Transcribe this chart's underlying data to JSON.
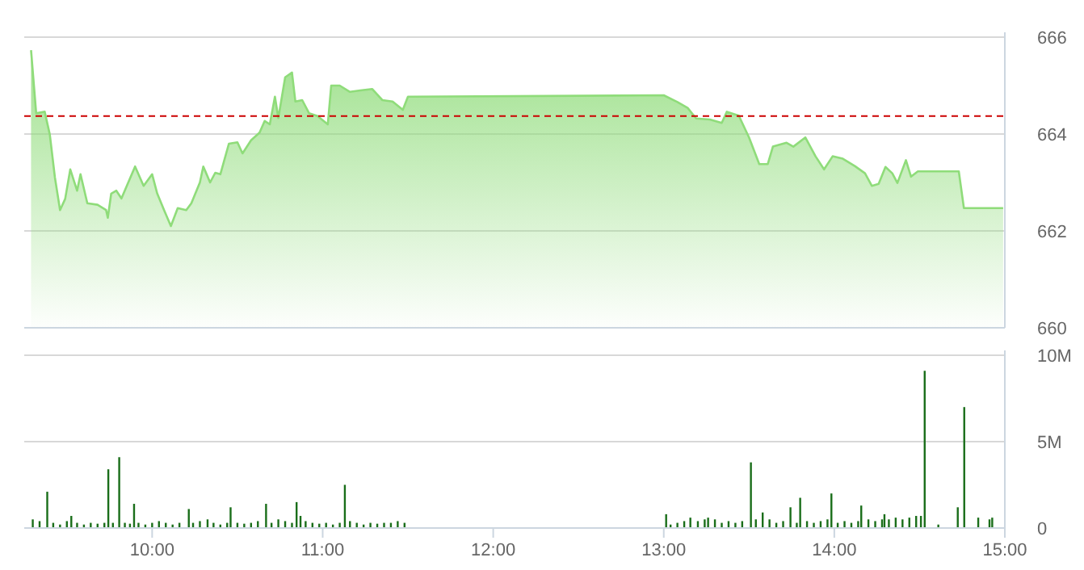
{
  "chart_data": [
    {
      "type": "area",
      "color": "#8fdc7a",
      "xlim": [
        9.25,
        15
      ],
      "ylim": [
        660,
        666
      ],
      "yticks": [
        660,
        662,
        664,
        666
      ],
      "tick_labels": "y",
      "grid": "y",
      "x": [
        9.29,
        9.32,
        9.37,
        9.4,
        9.43,
        9.46,
        9.49,
        9.52,
        9.56,
        9.58,
        9.62,
        9.68,
        9.73,
        9.74,
        9.76,
        9.79,
        9.82,
        9.9,
        9.95,
        10.0,
        10.03,
        10.07,
        10.11,
        10.15,
        10.2,
        10.23,
        10.28,
        10.3,
        10.34,
        10.37,
        10.4,
        10.45,
        10.5,
        10.53,
        10.58,
        10.63,
        10.66,
        10.69,
        10.72,
        10.74,
        10.78,
        10.82,
        10.84,
        10.88,
        10.92,
        10.97,
        11.03,
        11.05,
        11.1,
        11.16,
        11.22,
        11.29,
        11.35,
        11.41,
        11.47,
        11.5,
        13.0,
        13.08,
        13.14,
        13.19,
        13.27,
        13.34,
        13.37,
        13.44,
        13.5,
        13.56,
        13.61,
        13.64,
        13.72,
        13.76,
        13.83,
        13.89,
        13.94,
        13.99,
        14.05,
        14.12,
        14.18,
        14.22,
        14.26,
        14.3,
        14.34,
        14.37,
        14.42,
        14.45,
        14.49,
        14.73,
        14.76,
        14.99
      ],
      "values": [
        665.73,
        664.43,
        664.46,
        663.99,
        663.1,
        662.43,
        662.66,
        663.27,
        662.83,
        663.17,
        662.57,
        662.54,
        662.43,
        662.27,
        662.77,
        662.83,
        662.67,
        663.33,
        662.93,
        663.17,
        662.77,
        662.43,
        662.1,
        662.47,
        662.43,
        662.57,
        663.0,
        663.33,
        663.0,
        663.2,
        663.17,
        663.8,
        663.83,
        663.6,
        663.87,
        664.03,
        664.27,
        664.2,
        664.77,
        664.33,
        665.17,
        665.27,
        664.67,
        664.7,
        664.43,
        664.37,
        664.2,
        665.0,
        665.0,
        664.87,
        664.9,
        664.93,
        664.7,
        664.67,
        664.5,
        664.77,
        664.8,
        664.66,
        664.54,
        664.32,
        664.3,
        664.23,
        664.46,
        664.38,
        663.93,
        663.38,
        663.38,
        663.74,
        663.82,
        663.74,
        663.93,
        663.54,
        663.27,
        663.54,
        663.49,
        663.34,
        663.19,
        662.93,
        662.97,
        663.32,
        663.19,
        662.99,
        663.46,
        663.12,
        663.23,
        663.23,
        662.47,
        662.47
      ],
      "ref_lines": [
        {
          "axis": "y",
          "value": 664.37,
          "color": "#cc0000",
          "line_style": "dashed"
        }
      ]
    },
    {
      "type": "bar",
      "color": "#1a6e1a",
      "xlim": [
        9.25,
        15
      ],
      "ylim": [
        0,
        10000000
      ],
      "yticks": [
        {
          "value": 0,
          "label": "0"
        },
        {
          "value": 5000000,
          "label": "5M"
        },
        {
          "value": 10000000,
          "label": "10M"
        }
      ],
      "xticks": [
        {
          "value": 10,
          "label": "10:00"
        },
        {
          "value": 11,
          "label": "11:00"
        },
        {
          "value": 12,
          "label": "12:00"
        },
        {
          "value": 13,
          "label": "13:00"
        },
        {
          "value": 14,
          "label": "14:00"
        },
        {
          "value": 15,
          "label": "15:00"
        }
      ],
      "grid": "y",
      "x": [
        9.3,
        9.34,
        9.385,
        9.42,
        9.46,
        9.5,
        9.526,
        9.56,
        9.6,
        9.64,
        9.68,
        9.72,
        9.743,
        9.77,
        9.807,
        9.84,
        9.87,
        9.894,
        9.92,
        9.96,
        10.0,
        10.04,
        10.08,
        10.12,
        10.16,
        10.215,
        10.24,
        10.28,
        10.325,
        10.36,
        10.4,
        10.44,
        10.46,
        10.5,
        10.54,
        10.58,
        10.62,
        10.668,
        10.7,
        10.74,
        10.78,
        10.82,
        10.847,
        10.87,
        10.9,
        10.94,
        10.98,
        11.02,
        11.06,
        11.1,
        11.13,
        11.16,
        11.2,
        11.24,
        11.28,
        11.32,
        11.36,
        11.4,
        11.44,
        11.48,
        13.014,
        13.04,
        13.08,
        13.12,
        13.156,
        13.2,
        13.24,
        13.26,
        13.3,
        13.34,
        13.38,
        13.42,
        13.46,
        13.511,
        13.54,
        13.58,
        13.62,
        13.66,
        13.7,
        13.743,
        13.78,
        13.8,
        13.84,
        13.88,
        13.92,
        13.96,
        13.983,
        14.02,
        14.06,
        14.1,
        14.14,
        14.158,
        14.2,
        14.24,
        14.28,
        14.294,
        14.32,
        14.36,
        14.4,
        14.44,
        14.48,
        14.508,
        14.53,
        14.61,
        14.724,
        14.762,
        14.844,
        14.91,
        14.926
      ],
      "values": [
        500000,
        400000,
        2100000,
        300000,
        200000,
        400000,
        700000,
        300000,
        200000,
        300000,
        250000,
        300000,
        3400000,
        300000,
        4100000,
        300000,
        250000,
        1400000,
        300000,
        200000,
        300000,
        400000,
        300000,
        200000,
        300000,
        1100000,
        300000,
        400000,
        500000,
        300000,
        200000,
        300000,
        1200000,
        300000,
        250000,
        300000,
        400000,
        1400000,
        300000,
        500000,
        400000,
        300000,
        1500000,
        700000,
        400000,
        300000,
        250000,
        300000,
        200000,
        300000,
        2500000,
        400000,
        300000,
        200000,
        300000,
        250000,
        300000,
        300000,
        400000,
        300000,
        800000,
        200000,
        300000,
        400000,
        600000,
        400000,
        500000,
        600000,
        500000,
        300000,
        400000,
        300000,
        400000,
        3800000,
        500000,
        900000,
        500000,
        300000,
        400000,
        1200000,
        300000,
        1750000,
        400000,
        300000,
        400000,
        500000,
        2000000,
        300000,
        400000,
        300000,
        400000,
        1300000,
        500000,
        400000,
        500000,
        800000,
        500000,
        600000,
        500000,
        600000,
        700000,
        700000,
        9100000,
        200000,
        1200000,
        7000000,
        600000,
        500000,
        600000
      ]
    }
  ]
}
